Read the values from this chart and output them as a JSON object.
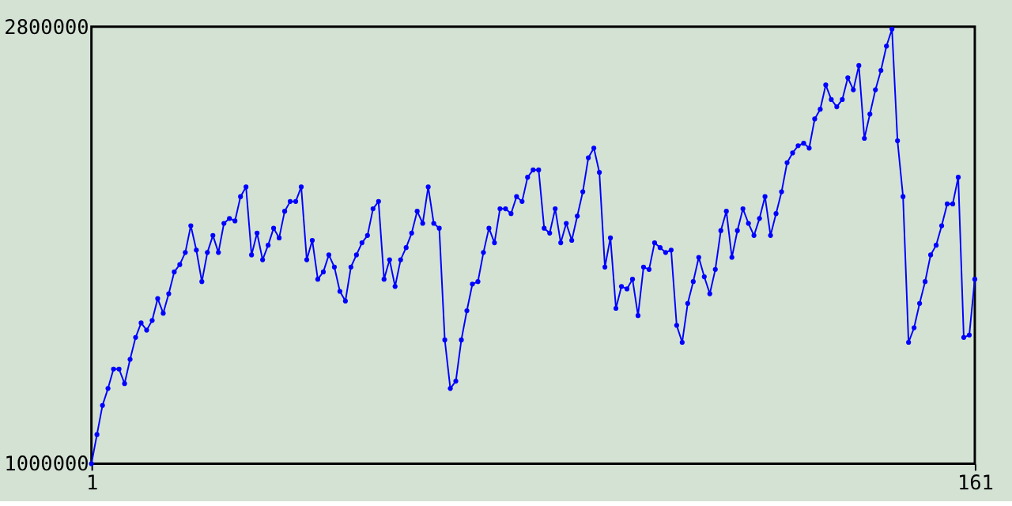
{
  "chart_data": {
    "type": "line",
    "x": [
      1,
      2,
      3,
      4,
      5,
      6,
      7,
      8,
      9,
      10,
      11,
      12,
      13,
      14,
      15,
      16,
      17,
      18,
      19,
      20,
      21,
      22,
      23,
      24,
      25,
      26,
      27,
      28,
      29,
      30,
      31,
      32,
      33,
      34,
      35,
      36,
      37,
      38,
      39,
      40,
      41,
      42,
      43,
      44,
      45,
      46,
      47,
      48,
      49,
      50,
      51,
      52,
      53,
      54,
      55,
      56,
      57,
      58,
      59,
      60,
      61,
      62,
      63,
      64,
      65,
      66,
      67,
      68,
      69,
      70,
      71,
      72,
      73,
      74,
      75,
      76,
      77,
      78,
      79,
      80,
      81,
      82,
      83,
      84,
      85,
      86,
      87,
      88,
      89,
      90,
      91,
      92,
      93,
      94,
      95,
      96,
      97,
      98,
      99,
      100,
      101,
      102,
      103,
      104,
      105,
      106,
      107,
      108,
      109,
      110,
      111,
      112,
      113,
      114,
      115,
      116,
      117,
      118,
      119,
      120,
      121,
      122,
      123,
      124,
      125,
      126,
      127,
      128,
      129,
      130,
      131,
      132,
      133,
      134,
      135,
      136,
      137,
      138,
      139,
      140,
      141,
      142,
      143,
      144,
      145,
      146,
      147,
      148,
      149,
      150,
      151,
      152,
      153,
      154,
      155,
      156,
      157,
      158,
      159,
      160,
      161
    ],
    "series": [
      {
        "color": "#0000ff",
        "values": [
          1000000,
          1120000,
          1240000,
          1310000,
          1390000,
          1390000,
          1330000,
          1430000,
          1520000,
          1580000,
          1550000,
          1590000,
          1680000,
          1620000,
          1700000,
          1790000,
          1820000,
          1870000,
          1980000,
          1880000,
          1750000,
          1870000,
          1940000,
          1870000,
          1990000,
          2010000,
          2000000,
          2100000,
          2140000,
          1860000,
          1950000,
          1840000,
          1900000,
          1970000,
          1930000,
          2040000,
          2080000,
          2080000,
          2140000,
          1840000,
          1920000,
          1760000,
          1790000,
          1860000,
          1810000,
          1710000,
          1670000,
          1810000,
          1860000,
          1910000,
          1940000,
          2050000,
          2080000,
          1760000,
          1840000,
          1730000,
          1840000,
          1890000,
          1950000,
          2040000,
          1990000,
          2140000,
          1990000,
          1970000,
          1510000,
          1310000,
          1340000,
          1510000,
          1630000,
          1740000,
          1750000,
          1870000,
          1970000,
          1910000,
          2050000,
          2050000,
          2030000,
          2100000,
          2080000,
          2180000,
          2210000,
          2210000,
          1970000,
          1950000,
          2050000,
          1910000,
          1990000,
          1920000,
          2020000,
          2120000,
          2260000,
          2300000,
          2200000,
          1810000,
          1930000,
          1640000,
          1730000,
          1720000,
          1760000,
          1610000,
          1810000,
          1800000,
          1910000,
          1890000,
          1870000,
          1880000,
          1570000,
          1500000,
          1660000,
          1750000,
          1850000,
          1770000,
          1700000,
          1800000,
          1960000,
          2040000,
          1850000,
          1960000,
          2050000,
          1990000,
          1940000,
          2010000,
          2100000,
          1940000,
          2030000,
          2120000,
          2240000,
          2280000,
          2310000,
          2320000,
          2300000,
          2420000,
          2460000,
          2560000,
          2500000,
          2470000,
          2500000,
          2590000,
          2540000,
          2640000,
          2340000,
          2440000,
          2540000,
          2620000,
          2720000,
          2790000,
          2330000,
          2100000,
          1500000,
          1560000,
          1660000,
          1750000,
          1860000,
          1900000,
          1980000,
          2070000,
          2070000,
          2180000,
          1520000,
          1530000,
          1760000
        ]
      }
    ],
    "xlim": [
      1,
      161
    ],
    "xticks": [
      1,
      161
    ],
    "ylim": [
      1000000,
      2800000
    ],
    "yticks": [
      1000000,
      2800000
    ],
    "marker": "circle",
    "grid": false
  }
}
